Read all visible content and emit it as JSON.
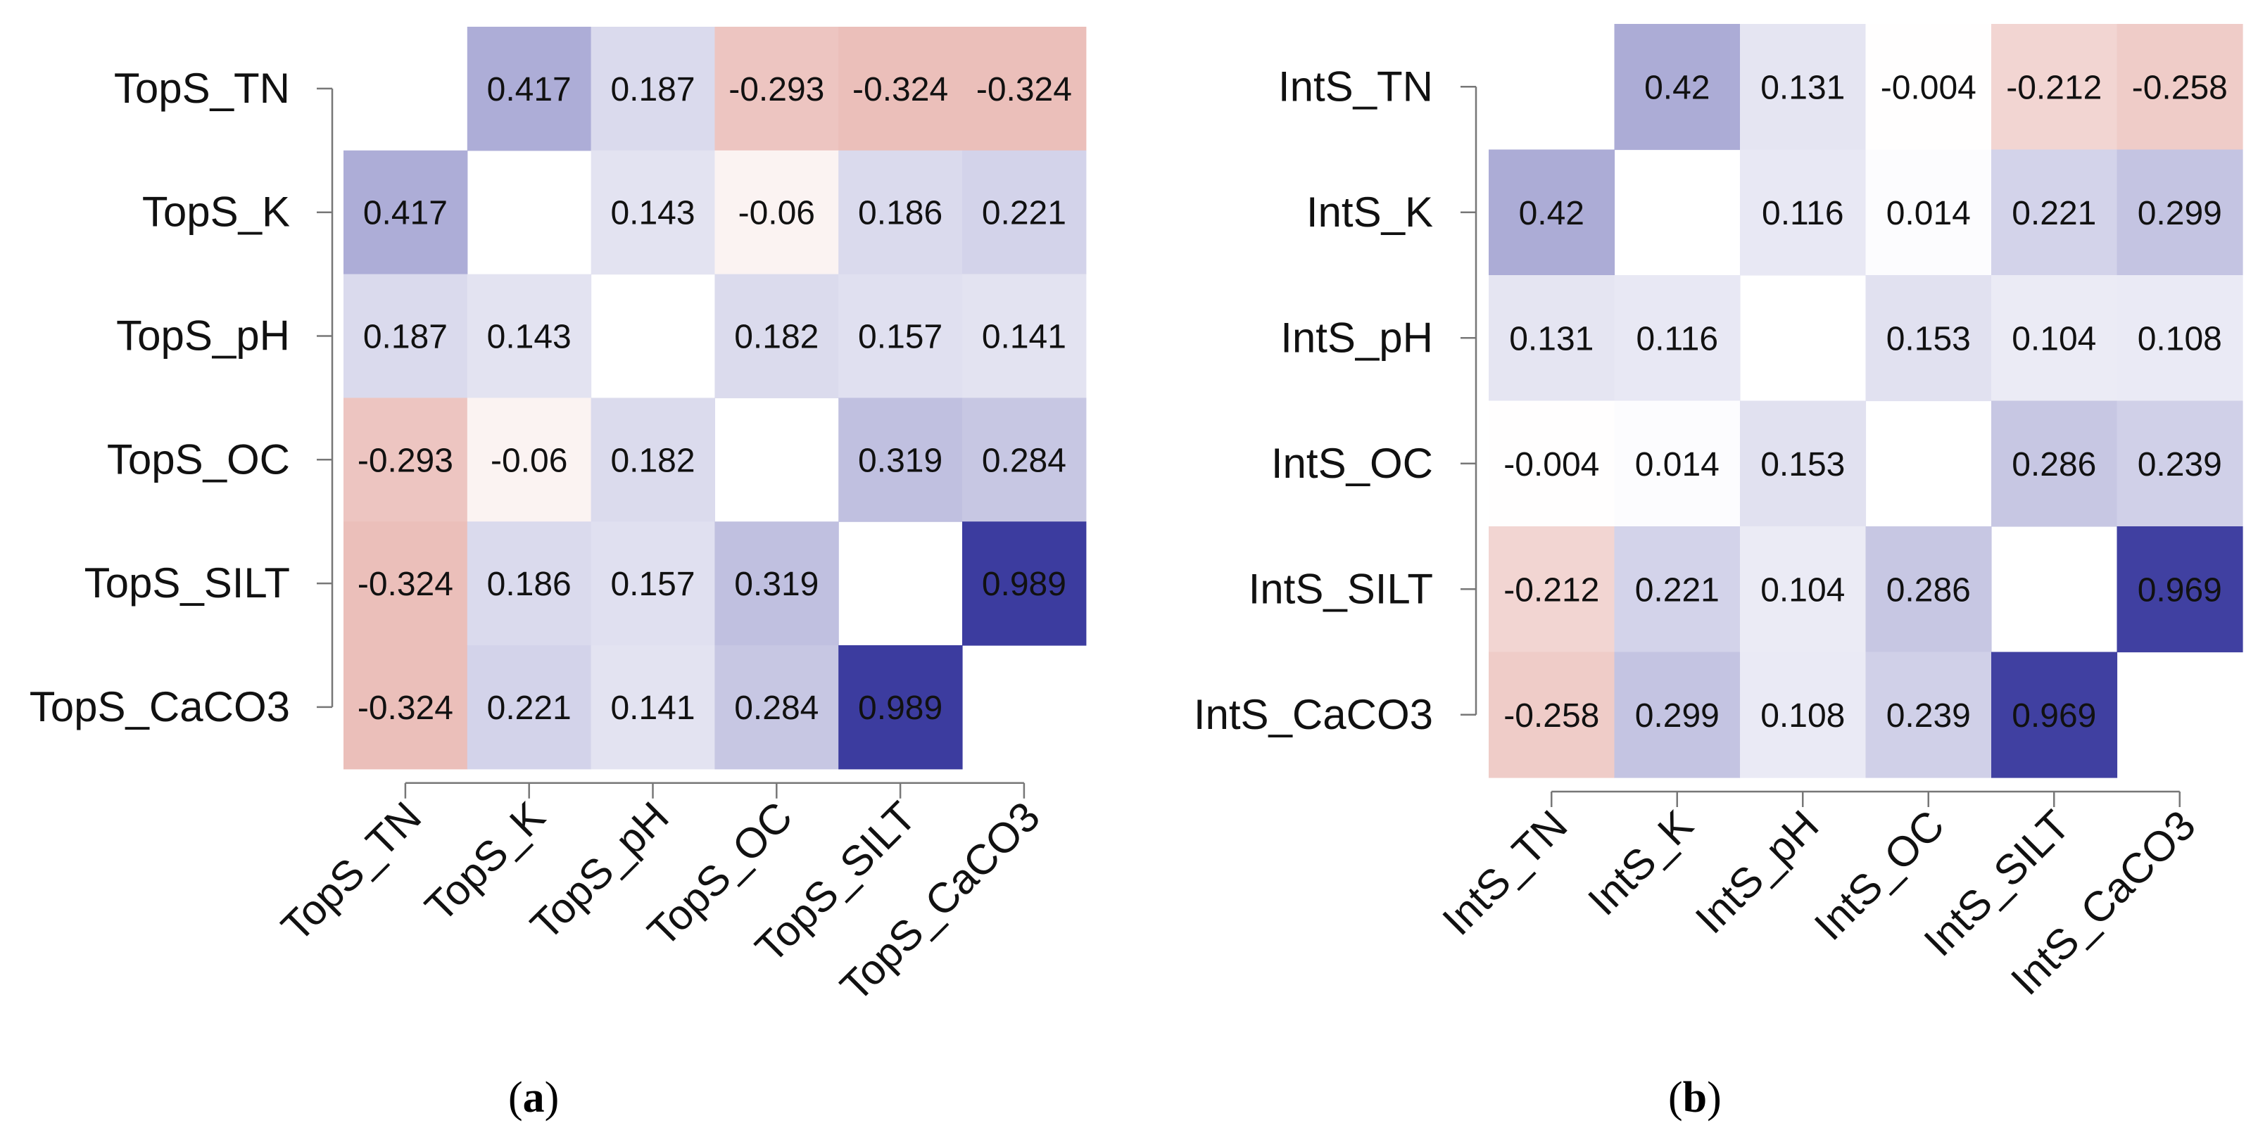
{
  "chart_data": [
    {
      "type": "heatmap",
      "panel_label": "a",
      "row_labels": [
        "TopS_TN",
        "TopS_K",
        "TopS_pH",
        "TopS_OC",
        "TopS_SILT",
        "TopS_CaCO3"
      ],
      "col_labels": [
        "TopS_TN",
        "TopS_K",
        "TopS_pH",
        "TopS_OC",
        "TopS_SILT",
        "TopS_CaCO3"
      ],
      "values": [
        [
          null,
          0.417,
          0.187,
          -0.293,
          -0.324,
          -0.324
        ],
        [
          0.417,
          null,
          0.143,
          -0.06,
          0.186,
          0.221
        ],
        [
          0.187,
          0.143,
          null,
          0.182,
          0.157,
          0.141
        ],
        [
          -0.293,
          -0.06,
          0.182,
          null,
          0.319,
          0.284
        ],
        [
          -0.324,
          0.186,
          0.157,
          0.319,
          null,
          0.989
        ],
        [
          -0.324,
          0.221,
          0.141,
          0.284,
          0.989,
          null
        ]
      ],
      "labels": [
        [
          "",
          "0.417",
          "0.187",
          "-0.293",
          "-0.324",
          "-0.324"
        ],
        [
          "0.417",
          "",
          "0.143",
          "-0.06",
          "0.186",
          "0.221"
        ],
        [
          "0.187",
          "0.143",
          "",
          "0.182",
          "0.157",
          "0.141"
        ],
        [
          "-0.293",
          "-0.06",
          "0.182",
          "",
          "0.319",
          "0.284"
        ],
        [
          "-0.324",
          "0.186",
          "0.157",
          "0.319",
          "",
          "0.989"
        ],
        [
          "-0.324",
          "0.221",
          "0.141",
          "0.284",
          "0.989",
          ""
        ]
      ],
      "color_scale": {
        "negative": "#c0392b",
        "zero": "#ffffff",
        "positive": "#3a3a9e"
      }
    },
    {
      "type": "heatmap",
      "panel_label": "b",
      "row_labels": [
        "IntS_TN",
        "IntS_K",
        "IntS_pH",
        "IntS_OC",
        "IntS_SILT",
        "IntS_CaCO3"
      ],
      "col_labels": [
        "IntS_TN",
        "IntS_K",
        "IntS_pH",
        "IntS_OC",
        "IntS_SILT",
        "IntS_CaCO3"
      ],
      "values": [
        [
          null,
          0.42,
          0.131,
          -0.004,
          -0.212,
          -0.258
        ],
        [
          0.42,
          null,
          0.116,
          0.014,
          0.221,
          0.299
        ],
        [
          0.131,
          0.116,
          null,
          0.153,
          0.104,
          0.108
        ],
        [
          -0.004,
          0.014,
          0.153,
          null,
          0.286,
          0.239
        ],
        [
          -0.212,
          0.221,
          0.104,
          0.286,
          null,
          0.969
        ],
        [
          -0.258,
          0.299,
          0.108,
          0.239,
          0.969,
          null
        ]
      ],
      "labels": [
        [
          "",
          "0.42",
          "0.131",
          "-0.004",
          "-0.212",
          "-0.258"
        ],
        [
          "0.42",
          "",
          "0.116",
          "0.014",
          "0.221",
          "0.299"
        ],
        [
          "0.131",
          "0.116",
          "",
          "0.153",
          "0.104",
          "0.108"
        ],
        [
          "-0.004",
          "0.014",
          "0.153",
          "",
          "0.286",
          "0.239"
        ],
        [
          "-0.212",
          "0.221",
          "0.104",
          "0.286",
          "",
          "0.969"
        ],
        [
          "-0.258",
          "0.299",
          "0.108",
          "0.239",
          "0.969",
          ""
        ]
      ],
      "color_scale": {
        "negative": "#c0392b",
        "zero": "#ffffff",
        "positive": "#3a3a9e"
      }
    }
  ]
}
